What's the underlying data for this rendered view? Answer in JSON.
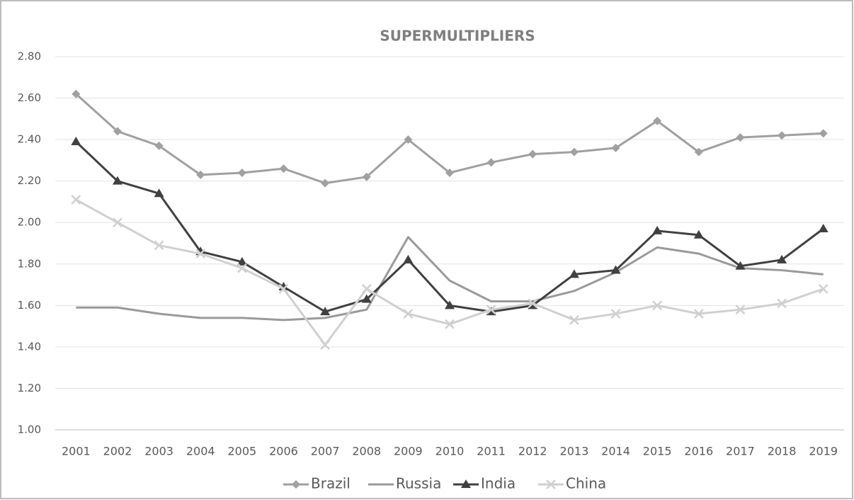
{
  "chart_data": {
    "type": "line",
    "title": "SUPERMULTIPLIERS",
    "categories": [
      "2001",
      "2002",
      "2003",
      "2004",
      "2005",
      "2006",
      "2007",
      "2008",
      "2009",
      "2010",
      "2011",
      "2012",
      "2013",
      "2014",
      "2015",
      "2016",
      "2017",
      "2018",
      "2019"
    ],
    "series": [
      {
        "name": "Brazil",
        "color": "#a0a0a0",
        "marker": "diamond",
        "values": [
          2.62,
          2.44,
          2.37,
          2.23,
          2.24,
          2.26,
          2.19,
          2.22,
          2.4,
          2.24,
          2.29,
          2.33,
          2.34,
          2.36,
          2.49,
          2.34,
          2.41,
          2.42,
          2.43
        ]
      },
      {
        "name": "Russia",
        "color": "#9a9a9a",
        "marker": "none",
        "values": [
          1.59,
          1.59,
          1.56,
          1.54,
          1.54,
          1.53,
          1.54,
          1.58,
          1.93,
          1.72,
          1.62,
          1.62,
          1.67,
          1.76,
          1.88,
          1.85,
          1.78,
          1.77,
          1.75
        ]
      },
      {
        "name": "India",
        "color": "#404040",
        "marker": "triangle",
        "values": [
          2.39,
          2.2,
          2.14,
          1.86,
          1.81,
          1.69,
          1.57,
          1.63,
          1.82,
          1.6,
          1.57,
          1.6,
          1.75,
          1.77,
          1.96,
          1.94,
          1.79,
          1.82,
          1.97
        ]
      },
      {
        "name": "China",
        "color": "#d0d0d0",
        "marker": "x",
        "values": [
          2.11,
          2.0,
          1.89,
          1.85,
          1.78,
          1.68,
          1.41,
          1.68,
          1.56,
          1.51,
          1.58,
          1.61,
          1.53,
          1.56,
          1.6,
          1.56,
          1.58,
          1.61,
          1.68
        ]
      }
    ],
    "ylim": [
      1.0,
      2.8
    ],
    "yticks": [
      {
        "value": 1.0,
        "label": "1.00"
      },
      {
        "value": 1.2,
        "label": "1.20"
      },
      {
        "value": 1.4,
        "label": "1.40"
      },
      {
        "value": 1.6,
        "label": "1.60"
      },
      {
        "value": 1.8,
        "label": "1.80"
      },
      {
        "value": 2.0,
        "label": "2.00"
      },
      {
        "value": 2.2,
        "label": "2.20"
      },
      {
        "value": 2.4,
        "label": "2.40"
      },
      {
        "value": 2.6,
        "label": "2.60"
      },
      {
        "value": 2.8,
        "label": "2.80"
      }
    ],
    "grid": true,
    "legend": "bottom"
  }
}
